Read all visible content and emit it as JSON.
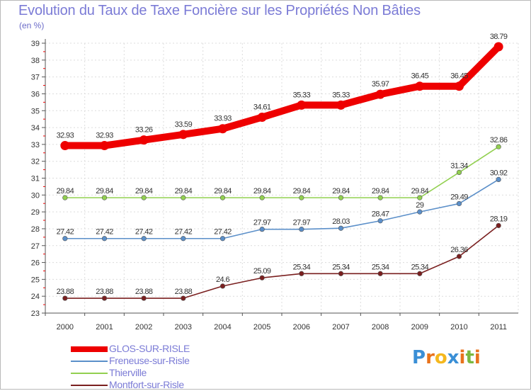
{
  "title": "Evolution du Taux de Taxe Foncière sur les Propriétés Non Bâties",
  "unit_label": "(en %)",
  "logo": {
    "text": "Proxiti",
    "letters": [
      "P",
      "r",
      "o",
      "x",
      "i",
      "t",
      "i"
    ],
    "colors": [
      "#3a8fd6",
      "#e8731c",
      "#f5b81e",
      "#3a8fd6",
      "#e8731c",
      "#7ab840",
      "#e8731c"
    ]
  },
  "chart_data": {
    "type": "line",
    "title": "Evolution du Taux de Taxe Foncière sur les Propriétés Non Bâties",
    "xlabel": "",
    "ylabel": "(en %)",
    "x": [
      "2000",
      "2001",
      "2002",
      "2003",
      "2004",
      "2005",
      "2006",
      "2007",
      "2008",
      "2009",
      "2010",
      "2011"
    ],
    "ylim": [
      23,
      39
    ],
    "yticks": [
      23,
      24,
      25,
      26,
      27,
      28,
      29,
      30,
      31,
      32,
      33,
      34,
      35,
      36,
      37,
      38,
      39
    ],
    "grid": true,
    "legend_position": "bottom-left",
    "series": [
      {
        "name": "GLOS-SUR-RISLE",
        "color": "#ee0000",
        "values": [
          32.93,
          32.93,
          33.26,
          33.59,
          33.93,
          34.61,
          35.33,
          35.33,
          35.97,
          36.45,
          36.45,
          38.79
        ],
        "labels": [
          "32.93",
          "32.93",
          "33.26",
          "33.59",
          "33.93",
          "34.61",
          "35.33",
          "35.33",
          "35.97",
          "36.45",
          "36.45",
          "38.79"
        ]
      },
      {
        "name": "Freneuse-sur-Risle",
        "color": "#5b8fc9",
        "values": [
          27.42,
          27.42,
          27.42,
          27.42,
          27.42,
          27.97,
          27.97,
          28.03,
          28.47,
          29,
          29.49,
          30.92
        ],
        "labels": [
          "27.42",
          "27.42",
          "27.42",
          "27.42",
          "27.42",
          "27.97",
          "27.97",
          "28.03",
          "28.47",
          "29",
          "29.49",
          "30.92"
        ]
      },
      {
        "name": "Thierville",
        "color": "#92d050",
        "values": [
          29.84,
          29.84,
          29.84,
          29.84,
          29.84,
          29.84,
          29.84,
          29.84,
          29.84,
          29.84,
          31.34,
          32.86
        ],
        "labels": [
          "29.84",
          "29.84",
          "29.84",
          "29.84",
          "29.84",
          "29.84",
          "29.84",
          "29.84",
          "29.84",
          "29.84",
          "31.34",
          "32.86"
        ]
      },
      {
        "name": "Montfort-sur-Risle",
        "color": "#7a1f1f",
        "values": [
          23.88,
          23.88,
          23.88,
          23.88,
          24.6,
          25.09,
          25.34,
          25.34,
          25.34,
          25.34,
          26.36,
          28.19
        ],
        "labels": [
          "23.88",
          "23.88",
          "23.88",
          "23.88",
          "24.6",
          "25.09",
          "25.34",
          "25.34",
          "25.34",
          "25.34",
          "26.36",
          "28.19"
        ]
      }
    ]
  }
}
